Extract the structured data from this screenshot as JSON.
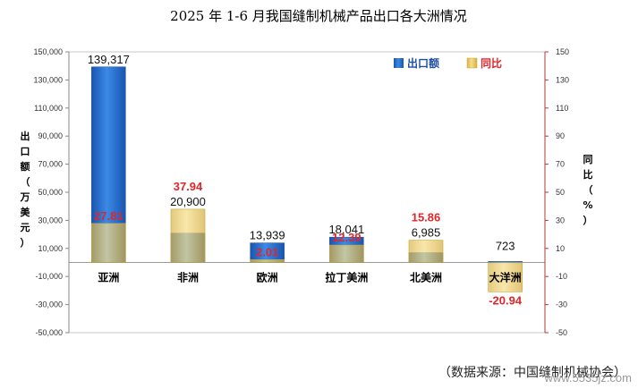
{
  "colors": {
    "export": "#1f6ad0",
    "yoy": "#e3c257",
    "yoy_label": "#e0262a",
    "axis_red": "#b03a3a"
  },
  "chart_data": {
    "type": "bar",
    "title": "2025 年 1-6 月我国缝制机械产品出口各大洲情况",
    "categories": [
      "亚洲",
      "非洲",
      "欧洲",
      "拉丁美洲",
      "北美洲",
      "大洋洲"
    ],
    "series": [
      {
        "name": "出口额",
        "axis": "left",
        "values": [
          139317,
          20900,
          13939,
          18041,
          6985,
          723
        ],
        "labels": [
          "139,317",
          "20,900",
          "13,939",
          "18,041",
          "6,985",
          "723"
        ]
      },
      {
        "name": "同比",
        "axis": "right",
        "values": [
          27.81,
          37.94,
          2.01,
          12.39,
          15.86,
          -20.94
        ],
        "labels": [
          "27.81",
          "37.94",
          "2.01",
          "12.39",
          "15.86",
          "-20.94"
        ]
      }
    ],
    "ylabel": "出口额（万美元）",
    "y2label": "同比（%）",
    "ylim": [
      -50000,
      150000
    ],
    "y2lim": [
      -50,
      150
    ],
    "yticks": [
      "150,000",
      "130,000",
      "110,000",
      "90,000",
      "70,000",
      "50,000",
      "30,000",
      "10,000",
      "-10,000",
      "-30,000",
      "-50,000"
    ],
    "y2ticks": [
      "150",
      "130",
      "110",
      "90",
      "70",
      "50",
      "30",
      "10",
      "-10",
      "-30",
      "-50"
    ],
    "legend": "top-right",
    "source": "（数据来源：中国缝制机械协会）",
    "watermark": "www.5535jz.com"
  }
}
